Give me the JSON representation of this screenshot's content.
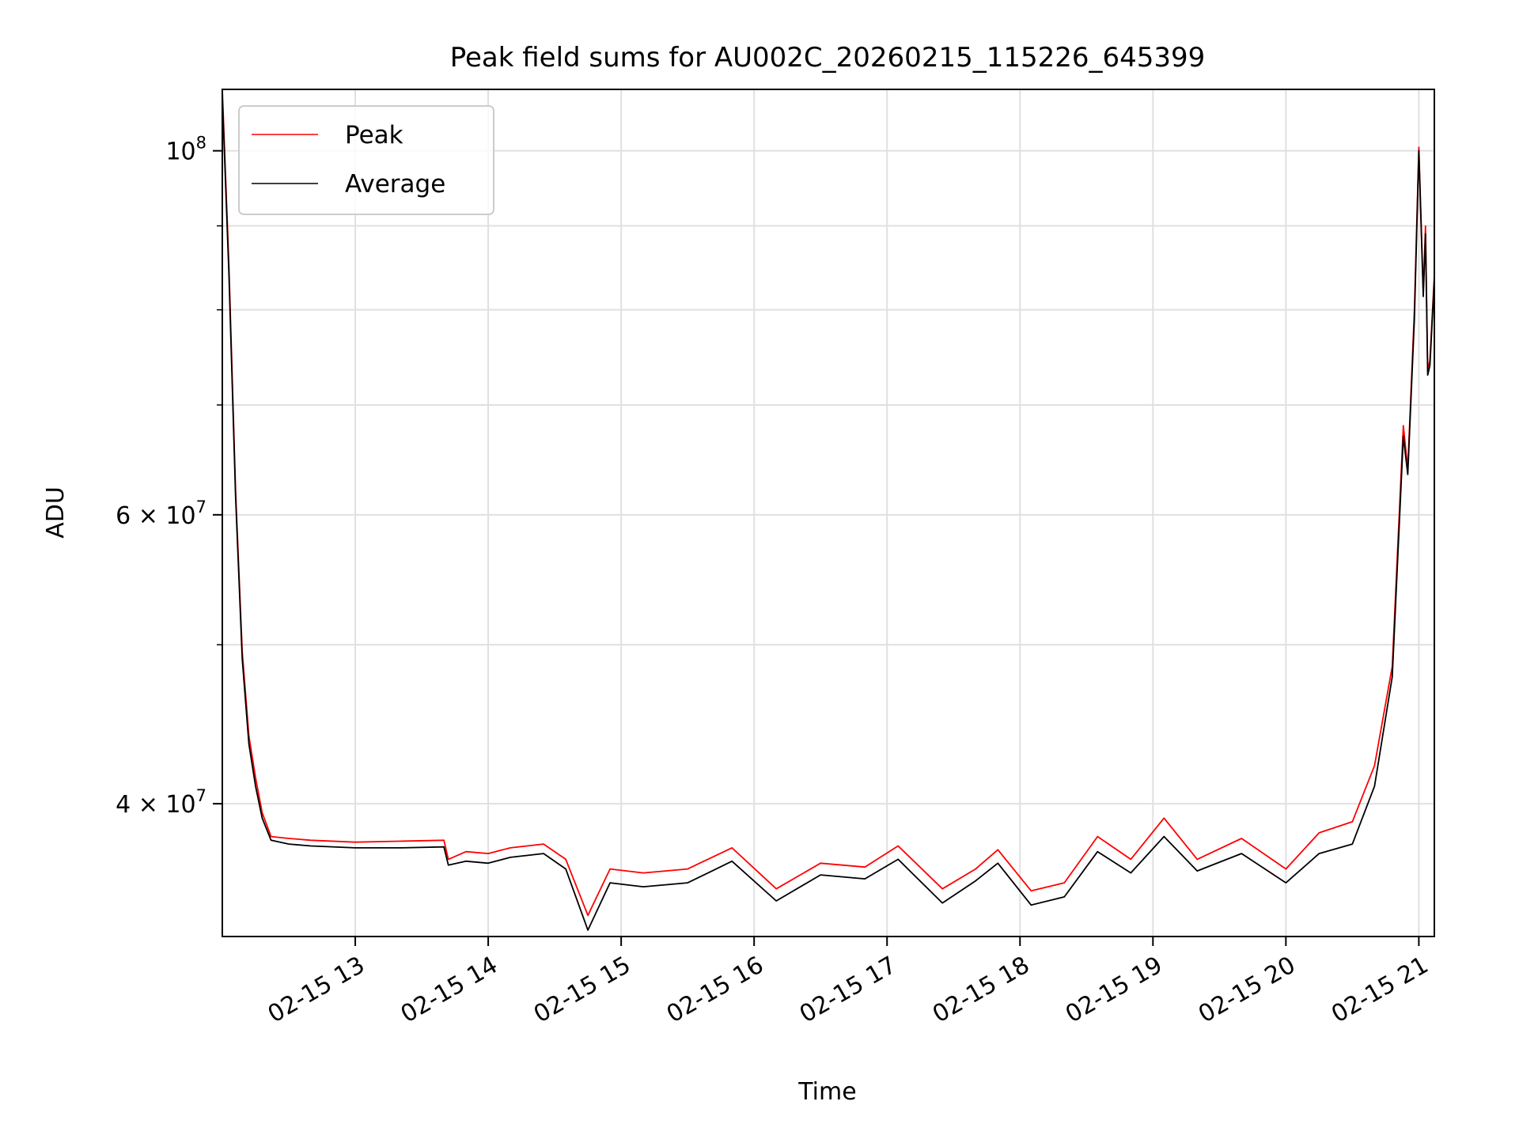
{
  "chart_data": {
    "type": "line",
    "title": "Peak field sums for AU002C_20260215_115226_645399",
    "xlabel": "Time",
    "ylabel": "ADU",
    "y_scale": "log",
    "ylim": [
      33200000,
      109000000
    ],
    "xlim": [
      "2026-02-15 12:00",
      "2026-02-15 21:07"
    ],
    "grid": true,
    "legend_position": "top-left",
    "x_ticks": [
      {
        "time": "2026-02-15 13:00",
        "label": "02-15 13"
      },
      {
        "time": "2026-02-15 14:00",
        "label": "02-15 14"
      },
      {
        "time": "2026-02-15 15:00",
        "label": "02-15 15"
      },
      {
        "time": "2026-02-15 16:00",
        "label": "02-15 16"
      },
      {
        "time": "2026-02-15 17:00",
        "label": "02-15 17"
      },
      {
        "time": "2026-02-15 18:00",
        "label": "02-15 18"
      },
      {
        "time": "2026-02-15 19:00",
        "label": "02-15 19"
      },
      {
        "time": "2026-02-15 20:00",
        "label": "02-15 20"
      },
      {
        "time": "2026-02-15 21:00",
        "label": "02-15 21"
      }
    ],
    "y_ticks": [
      {
        "value": 40000000,
        "base": "4 × 10",
        "exp": "7"
      },
      {
        "value": 60000000,
        "base": "6 × 10",
        "exp": "7"
      },
      {
        "value": 100000000,
        "base": "10",
        "exp": "8"
      }
    ],
    "y_minor_ticks": [
      50000000,
      70000000,
      80000000,
      90000000
    ],
    "series": [
      {
        "name": "Peak",
        "color": "#ff0000",
        "points": [
          [
            "2026-02-15 12:00",
            109000000
          ],
          [
            "2026-02-15 12:03",
            85000000
          ],
          [
            "2026-02-15 12:06",
            62000000
          ],
          [
            "2026-02-15 12:09",
            49500000
          ],
          [
            "2026-02-15 12:12",
            44000000
          ],
          [
            "2026-02-15 12:15",
            41500000
          ],
          [
            "2026-02-15 12:18",
            39500000
          ],
          [
            "2026-02-15 12:22",
            38200000
          ],
          [
            "2026-02-15 12:30",
            38100000
          ],
          [
            "2026-02-15 12:40",
            38000000
          ],
          [
            "2026-02-15 13:00",
            37900000
          ],
          [
            "2026-02-15 13:20",
            37950000
          ],
          [
            "2026-02-15 13:40",
            38000000
          ],
          [
            "2026-02-15 13:42",
            37000000
          ],
          [
            "2026-02-15 13:50",
            37400000
          ],
          [
            "2026-02-15 14:00",
            37300000
          ],
          [
            "2026-02-15 14:10",
            37600000
          ],
          [
            "2026-02-15 14:25",
            37800000
          ],
          [
            "2026-02-15 14:35",
            37000000
          ],
          [
            "2026-02-15 14:45",
            34200000
          ],
          [
            "2026-02-15 14:55",
            36500000
          ],
          [
            "2026-02-15 15:10",
            36300000
          ],
          [
            "2026-02-15 15:30",
            36500000
          ],
          [
            "2026-02-15 15:50",
            37600000
          ],
          [
            "2026-02-15 16:10",
            35500000
          ],
          [
            "2026-02-15 16:30",
            36800000
          ],
          [
            "2026-02-15 16:50",
            36600000
          ],
          [
            "2026-02-15 17:05",
            37700000
          ],
          [
            "2026-02-15 17:25",
            35500000
          ],
          [
            "2026-02-15 17:40",
            36500000
          ],
          [
            "2026-02-15 17:50",
            37500000
          ],
          [
            "2026-02-15 18:05",
            35400000
          ],
          [
            "2026-02-15 18:20",
            35800000
          ],
          [
            "2026-02-15 18:35",
            38200000
          ],
          [
            "2026-02-15 18:50",
            37000000
          ],
          [
            "2026-02-15 19:05",
            39200000
          ],
          [
            "2026-02-15 19:20",
            37000000
          ],
          [
            "2026-02-15 19:40",
            38100000
          ],
          [
            "2026-02-15 20:00",
            36500000
          ],
          [
            "2026-02-15 20:15",
            38400000
          ],
          [
            "2026-02-15 20:30",
            39000000
          ],
          [
            "2026-02-15 20:40",
            42200000
          ],
          [
            "2026-02-15 20:48",
            48500000
          ],
          [
            "2026-02-15 20:53",
            68000000
          ],
          [
            "2026-02-15 20:55",
            64000000
          ],
          [
            "2026-02-15 20:58",
            80000000
          ],
          [
            "2026-02-15 21:00",
            100500000
          ],
          [
            "2026-02-15 21:02",
            82000000
          ],
          [
            "2026-02-15 21:03",
            90000000
          ],
          [
            "2026-02-15 21:04",
            73500000
          ],
          [
            "2026-02-15 21:05",
            74500000
          ],
          [
            "2026-02-15 21:07",
            84000000
          ]
        ]
      },
      {
        "name": "Average",
        "color": "#000000",
        "points": [
          [
            "2026-02-15 12:00",
            108000000
          ],
          [
            "2026-02-15 12:03",
            84000000
          ],
          [
            "2026-02-15 12:06",
            61500000
          ],
          [
            "2026-02-15 12:09",
            49000000
          ],
          [
            "2026-02-15 12:12",
            43500000
          ],
          [
            "2026-02-15 12:15",
            41000000
          ],
          [
            "2026-02-15 12:18",
            39200000
          ],
          [
            "2026-02-15 12:22",
            38000000
          ],
          [
            "2026-02-15 12:30",
            37800000
          ],
          [
            "2026-02-15 12:40",
            37700000
          ],
          [
            "2026-02-15 13:00",
            37600000
          ],
          [
            "2026-02-15 13:20",
            37600000
          ],
          [
            "2026-02-15 13:40",
            37650000
          ],
          [
            "2026-02-15 13:42",
            36700000
          ],
          [
            "2026-02-15 13:50",
            36900000
          ],
          [
            "2026-02-15 14:00",
            36800000
          ],
          [
            "2026-02-15 14:10",
            37100000
          ],
          [
            "2026-02-15 14:25",
            37300000
          ],
          [
            "2026-02-15 14:35",
            36500000
          ],
          [
            "2026-02-15 14:45",
            33500000
          ],
          [
            "2026-02-15 14:55",
            35800000
          ],
          [
            "2026-02-15 15:10",
            35600000
          ],
          [
            "2026-02-15 15:30",
            35800000
          ],
          [
            "2026-02-15 15:50",
            36900000
          ],
          [
            "2026-02-15 16:10",
            34900000
          ],
          [
            "2026-02-15 16:30",
            36200000
          ],
          [
            "2026-02-15 16:50",
            36000000
          ],
          [
            "2026-02-15 17:05",
            37000000
          ],
          [
            "2026-02-15 17:25",
            34800000
          ],
          [
            "2026-02-15 17:40",
            35900000
          ],
          [
            "2026-02-15 17:50",
            36800000
          ],
          [
            "2026-02-15 18:05",
            34700000
          ],
          [
            "2026-02-15 18:20",
            35100000
          ],
          [
            "2026-02-15 18:35",
            37400000
          ],
          [
            "2026-02-15 18:50",
            36300000
          ],
          [
            "2026-02-15 19:05",
            38200000
          ],
          [
            "2026-02-15 19:20",
            36400000
          ],
          [
            "2026-02-15 19:40",
            37300000
          ],
          [
            "2026-02-15 20:00",
            35800000
          ],
          [
            "2026-02-15 20:15",
            37300000
          ],
          [
            "2026-02-15 20:30",
            37800000
          ],
          [
            "2026-02-15 20:40",
            41000000
          ],
          [
            "2026-02-15 20:48",
            47800000
          ],
          [
            "2026-02-15 20:53",
            67000000
          ],
          [
            "2026-02-15 20:55",
            63500000
          ],
          [
            "2026-02-15 20:58",
            79000000
          ],
          [
            "2026-02-15 21:00",
            100000000
          ],
          [
            "2026-02-15 21:02",
            81500000
          ],
          [
            "2026-02-15 21:03",
            89000000
          ],
          [
            "2026-02-15 21:04",
            73000000
          ],
          [
            "2026-02-15 21:05",
            74000000
          ],
          [
            "2026-02-15 21:07",
            83500000
          ]
        ]
      }
    ]
  }
}
